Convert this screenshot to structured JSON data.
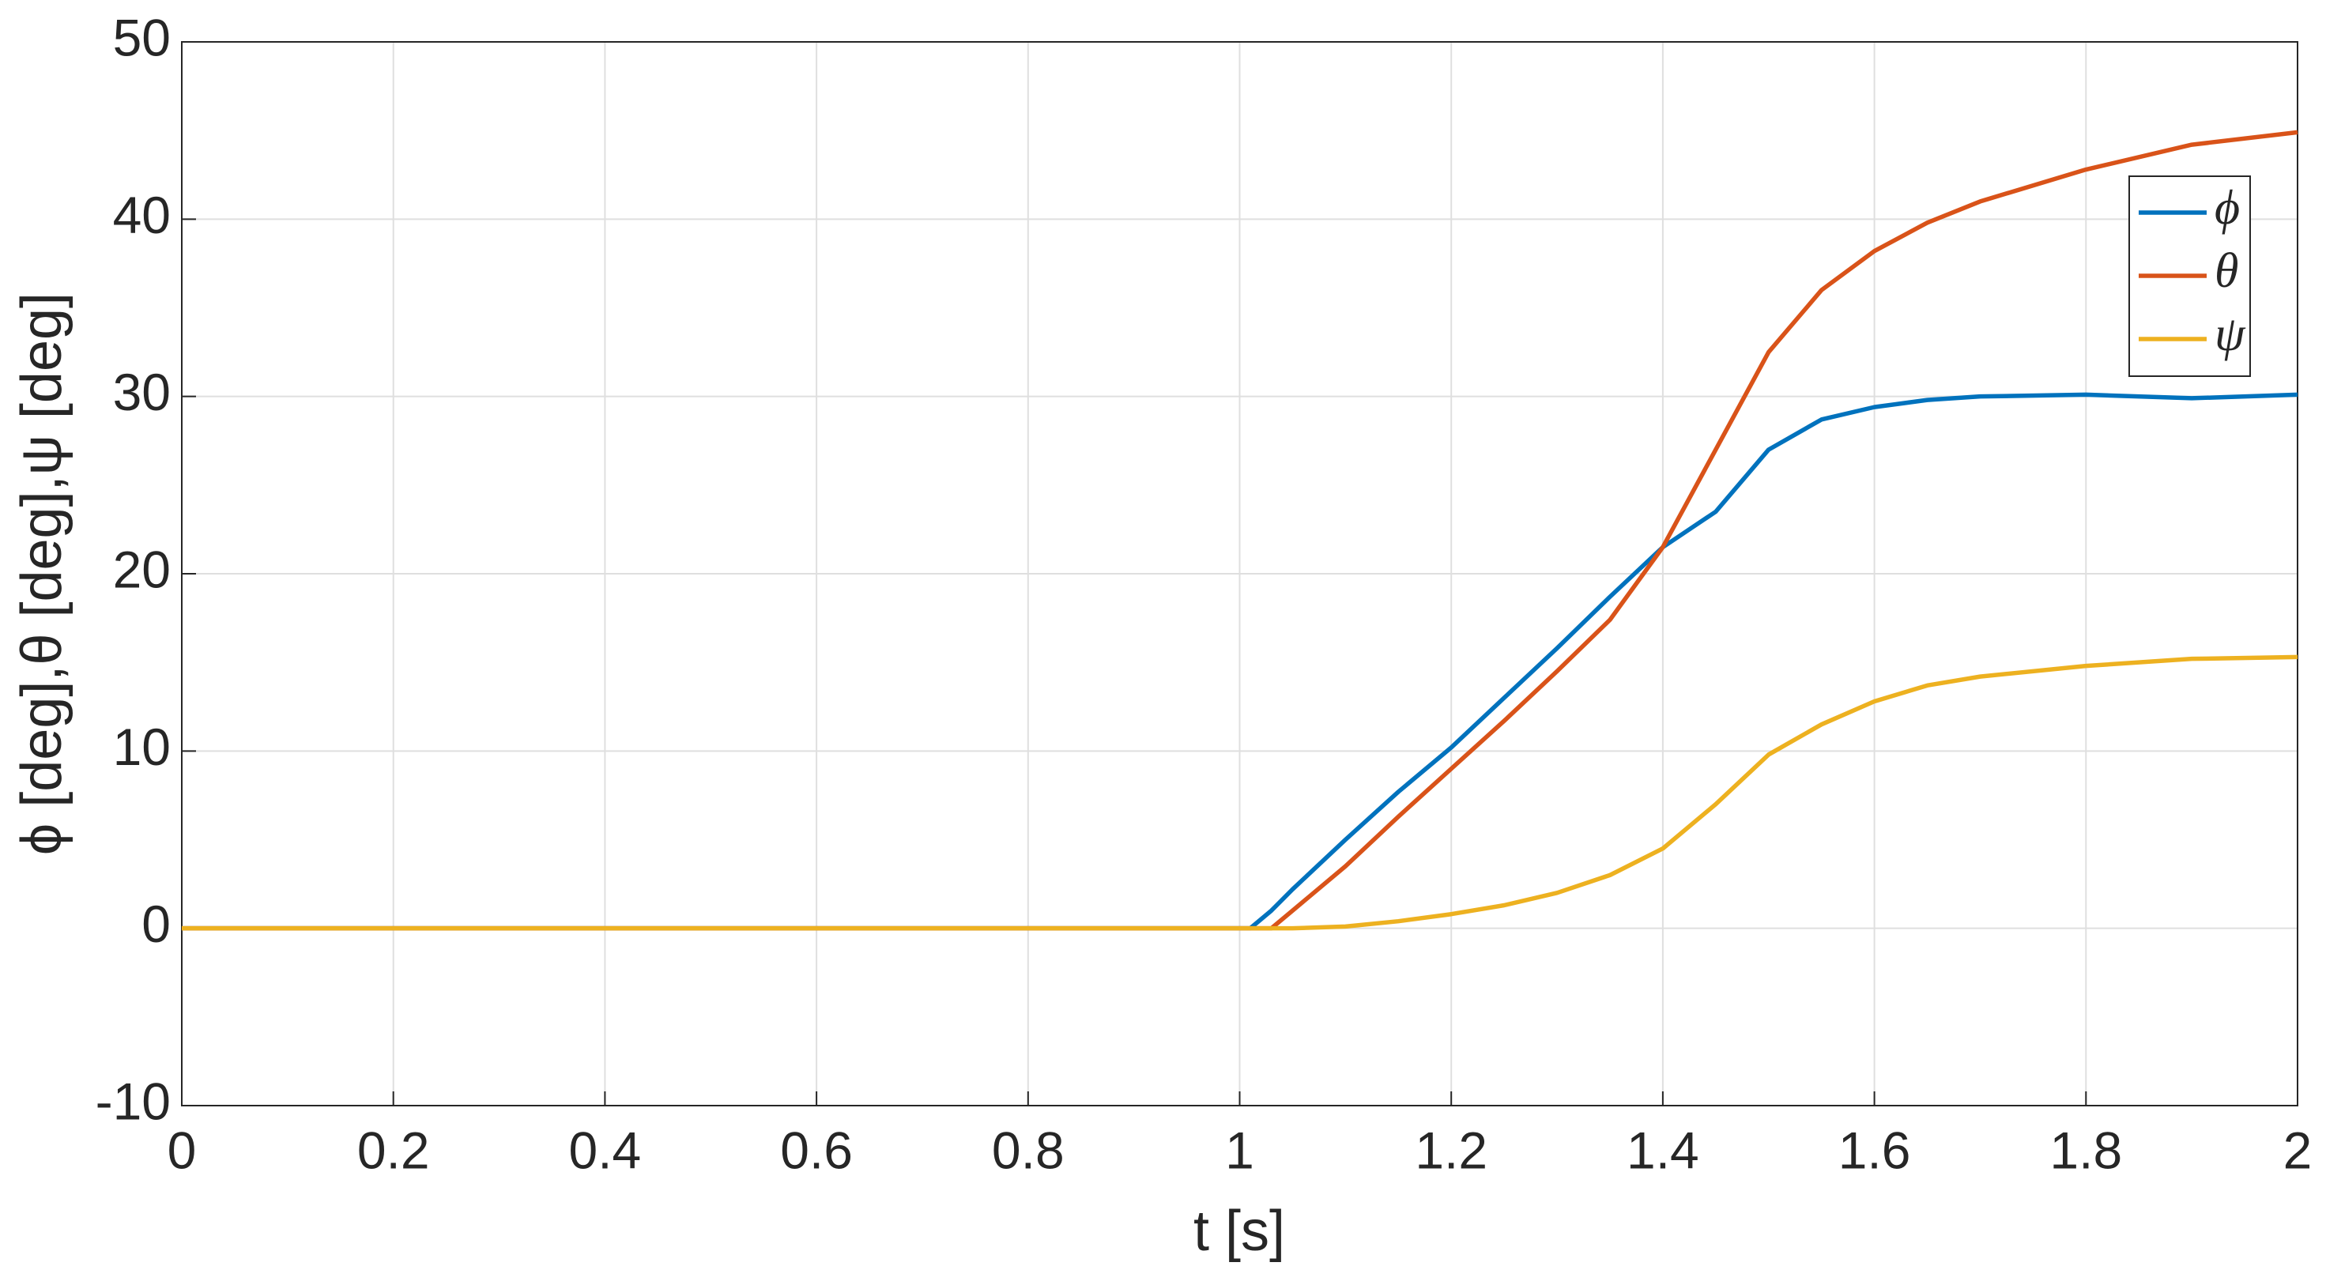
{
  "chart_data": {
    "type": "line",
    "xlabel": "t [s]",
    "ylabel": "ϕ [deg],θ [deg],ψ [deg]",
    "x": [
      0,
      1.0,
      1.01,
      1.03,
      1.05,
      1.1,
      1.15,
      1.2,
      1.25,
      1.3,
      1.35,
      1.4,
      1.45,
      1.5,
      1.55,
      1.6,
      1.65,
      1.7,
      1.8,
      1.9,
      2.0
    ],
    "series": [
      {
        "name": "ϕ",
        "color": "#0072bd",
        "values": [
          0,
          0,
          0,
          1,
          2.2,
          5,
          7.7,
          10.2,
          13,
          15.8,
          18.7,
          21.5,
          23.5,
          27,
          28.7,
          29.4,
          29.8,
          30,
          30.1,
          29.9,
          30.1
        ]
      },
      {
        "name": "θ",
        "color": "#d95319",
        "values": [
          0,
          0,
          0,
          0,
          1,
          3.5,
          6.3,
          9,
          11.7,
          14.5,
          17.4,
          21.5,
          27,
          32.5,
          36,
          38.2,
          39.8,
          41,
          42.8,
          44.2,
          44.9
        ]
      },
      {
        "name": "ψ",
        "color": "#edb120",
        "values": [
          0,
          0,
          0,
          0,
          0,
          0.1,
          0.4,
          0.8,
          1.3,
          2,
          3,
          4.5,
          7,
          9.8,
          11.5,
          12.8,
          13.7,
          14.2,
          14.8,
          15.2,
          15.3
        ]
      }
    ],
    "xlim": [
      0,
      2
    ],
    "xticks": [
      0,
      0.2,
      0.4,
      0.6,
      0.8,
      1,
      1.2,
      1.4,
      1.6,
      1.8,
      2
    ],
    "ylim": [
      -10,
      50
    ],
    "yticks": [
      -10,
      0,
      10,
      20,
      30,
      40,
      50
    ],
    "grid": true,
    "legend": "upper-right"
  }
}
